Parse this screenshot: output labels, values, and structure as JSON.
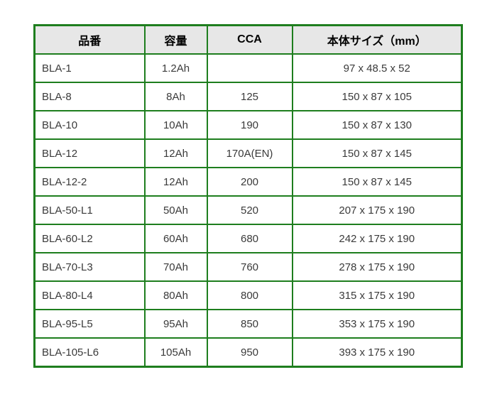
{
  "chart_data": {
    "type": "table",
    "headers": [
      "品番",
      "容量",
      "CCA",
      "本体サイズ（mm）"
    ],
    "rows": [
      [
        "BLA-1",
        "1.2Ah",
        "",
        "97 x 48.5 x 52"
      ],
      [
        "BLA-8",
        "8Ah",
        "125",
        "150 x 87 x 105"
      ],
      [
        "BLA-10",
        "10Ah",
        "190",
        "150 x 87 x 130"
      ],
      [
        "BLA-12",
        "12Ah",
        "170A(EN)",
        "150 x 87 x 145"
      ],
      [
        "BLA-12-2",
        "12Ah",
        "200",
        "150 x 87 x 145"
      ],
      [
        "BLA-50-L1",
        "50Ah",
        "520",
        "207 x 175 x 190"
      ],
      [
        "BLA-60-L2",
        "60Ah",
        "680",
        "242 x 175 x 190"
      ],
      [
        "BLA-70-L3",
        "70Ah",
        "760",
        "278 x 175 x 190"
      ],
      [
        "BLA-80-L4",
        "80Ah",
        "800",
        "315 x 175 x 190"
      ],
      [
        "BLA-95-L5",
        "95Ah",
        "850",
        "353 x 175 x 190"
      ],
      [
        "BLA-105-L6",
        "105Ah",
        "950",
        "393 x 175 x 190"
      ]
    ],
    "layout": {
      "grid": "full-borders",
      "header_position": "top"
    }
  },
  "colors": {
    "border_green": "#1e7e1e",
    "header_bg": "#e7e7e7",
    "cell_text": "#3a3a3a",
    "page_bg": "#ffffff"
  }
}
